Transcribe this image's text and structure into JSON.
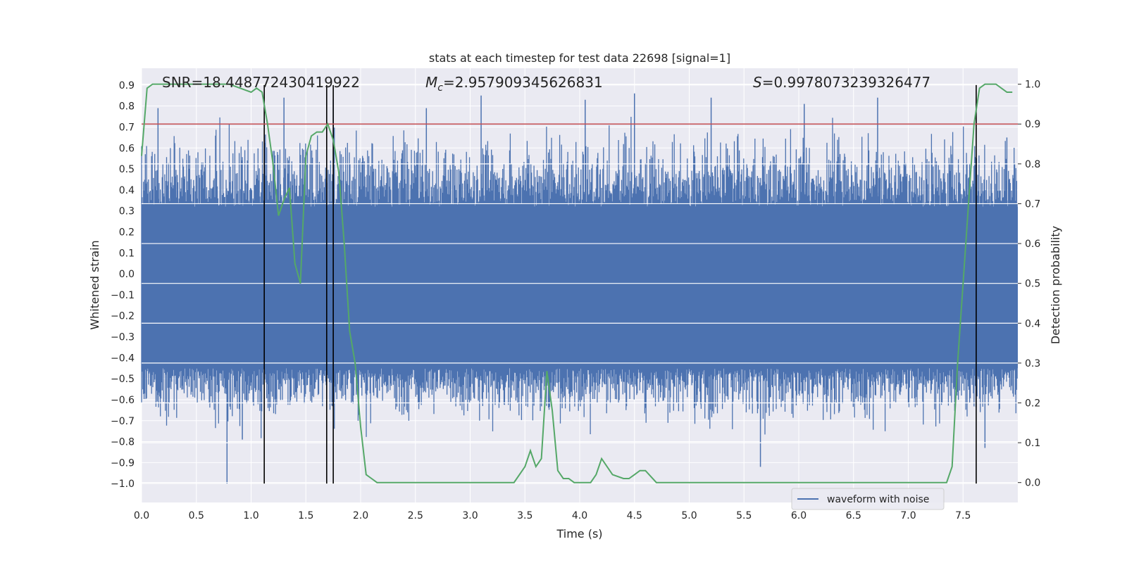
{
  "chart_data": {
    "type": "line",
    "title": "stats at each timestep for test data 22698 [signal=1]",
    "xlabel": "Time (s)",
    "ylabel": "Whitened strain",
    "ylabel_right": "Detection probability",
    "xlim": [
      0,
      8
    ],
    "ylim": [
      -1.09,
      0.98
    ],
    "ylim_right": [
      -0.05,
      1.04
    ],
    "x_ticks": [
      "0.0",
      "0.5",
      "1.0",
      "1.5",
      "2.0",
      "2.5",
      "3.0",
      "3.5",
      "4.0",
      "4.5",
      "5.0",
      "5.5",
      "6.0",
      "6.5",
      "7.0",
      "7.5"
    ],
    "y_ticks": [
      "−1.0",
      "−0.9",
      "−0.8",
      "−0.7",
      "−0.6",
      "−0.5",
      "−0.4",
      "−0.3",
      "−0.2",
      "−0.1",
      "0.0",
      "0.1",
      "0.2",
      "0.3",
      "0.4",
      "0.5",
      "0.6",
      "0.7",
      "0.8",
      "0.9"
    ],
    "y_right_ticks": [
      "0.0",
      "0.1",
      "0.2",
      "0.3",
      "0.4",
      "0.5",
      "0.6",
      "0.7",
      "0.8",
      "0.9",
      "1.0"
    ],
    "grid": true,
    "legend_position": "lower right",
    "annotations": {
      "snr": "SNR=18.448772430419922",
      "mc_sym": "M",
      "mc_sub": "c",
      "mc_val": "=2.957909345626831",
      "s_sym": "S",
      "s_val": "=0.9978073239326477"
    },
    "series": [
      {
        "name": "waveform with noise",
        "axis": "left",
        "color": "#4c72b0",
        "kind": "noise-envelope",
        "duration_s": 8,
        "core_band": [
          -0.45,
          0.32
        ],
        "typical_peaks": [
          0.6,
          -0.65
        ],
        "extreme_peaks": [
          {
            "x": 0.15,
            "y": 0.79
          },
          {
            "x": 0.78,
            "y": -1.0
          },
          {
            "x": 0.92,
            "y": -0.79
          },
          {
            "x": 1.3,
            "y": 0.84
          },
          {
            "x": 1.75,
            "y": 0.83
          },
          {
            "x": 2.6,
            "y": 0.79
          },
          {
            "x": 3.1,
            "y": 0.85
          },
          {
            "x": 4.05,
            "y": 0.83
          },
          {
            "x": 4.5,
            "y": 0.86
          },
          {
            "x": 5.2,
            "y": 0.84
          },
          {
            "x": 5.65,
            "y": -0.92
          },
          {
            "x": 6.05,
            "y": 0.81
          },
          {
            "x": 6.72,
            "y": 0.84
          },
          {
            "x": 7.7,
            "y": -0.83
          },
          {
            "x": 7.9,
            "y": 0.65
          }
        ]
      },
      {
        "axis": "right",
        "color": "#55a868",
        "x": [
          0,
          0.05,
          0.1,
          0.2,
          0.3,
          0.4,
          0.5,
          0.6,
          0.7,
          0.8,
          0.9,
          1.0,
          1.05,
          1.1,
          1.15,
          1.2,
          1.25,
          1.3,
          1.35,
          1.4,
          1.45,
          1.5,
          1.55,
          1.6,
          1.65,
          1.7,
          1.75,
          1.8,
          1.85,
          1.9,
          1.95,
          2.0,
          2.05,
          2.1,
          2.15,
          2.2,
          2.3,
          2.5,
          3.0,
          3.4,
          3.5,
          3.55,
          3.6,
          3.65,
          3.7,
          3.75,
          3.8,
          3.85,
          3.9,
          3.95,
          4.0,
          4.05,
          4.1,
          4.15,
          4.2,
          4.3,
          4.4,
          4.45,
          4.5,
          4.55,
          4.6,
          4.7,
          4.8,
          4.85,
          4.9,
          4.95,
          5.0,
          5.1,
          5.5,
          6.0,
          6.5,
          7.0,
          7.35,
          7.4,
          7.45,
          7.5,
          7.55,
          7.6,
          7.65,
          7.7,
          7.75,
          7.8,
          7.85,
          7.9,
          7.95
        ],
        "y": [
          0.82,
          0.99,
          1.0,
          1.0,
          1.0,
          1.0,
          1.0,
          1.0,
          1.0,
          1.0,
          0.99,
          0.98,
          0.99,
          0.98,
          0.9,
          0.8,
          0.67,
          0.71,
          0.74,
          0.55,
          0.5,
          0.82,
          0.87,
          0.88,
          0.88,
          0.9,
          0.86,
          0.78,
          0.6,
          0.38,
          0.3,
          0.14,
          0.02,
          0.01,
          0.0,
          0.0,
          0.0,
          0.0,
          0.0,
          0.0,
          0.04,
          0.08,
          0.04,
          0.06,
          0.28,
          0.18,
          0.03,
          0.01,
          0.01,
          0.0,
          0.0,
          0.0,
          0.0,
          0.02,
          0.06,
          0.02,
          0.01,
          0.01,
          0.02,
          0.03,
          0.03,
          0.0,
          0.0,
          0.0,
          0.0,
          0.0,
          0.0,
          0.0,
          0.0,
          0.0,
          0.0,
          0.0,
          0.0,
          0.04,
          0.3,
          0.5,
          0.7,
          0.9,
          0.99,
          1.0,
          1.0,
          1.0,
          0.99,
          0.98,
          0.98
        ]
      }
    ],
    "threshold_line": {
      "axis": "right",
      "value": 0.9,
      "color": "#c44e52"
    },
    "vertical_lines": [
      1.12,
      1.69,
      1.75,
      7.62
    ],
    "vertical_line_top": 0.9,
    "vertical_line_bottom": -1.0
  }
}
